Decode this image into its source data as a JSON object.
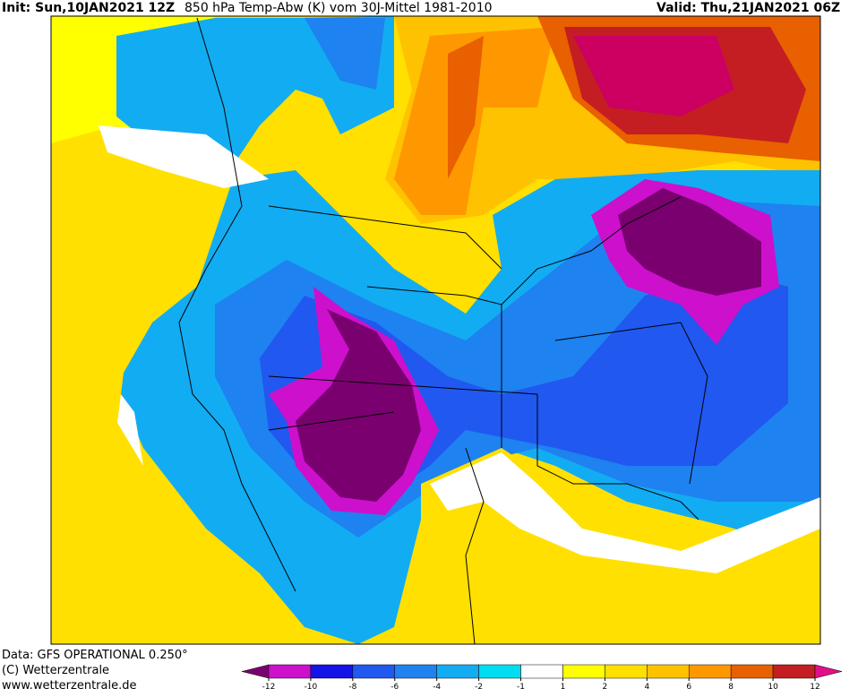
{
  "header": {
    "init": "Init: Sun,10JAN2021 12Z",
    "title": "850 hPa Temp-Abw (K) vom 30J-Mittel 1981-2010",
    "valid": "Valid: Thu,21JAN2021 06Z"
  },
  "footer": {
    "source": "Data: GFS OPERATIONAL 0.250°",
    "copyright": "(C) Wetterzentrale",
    "url": "www.wetterzentrale.de"
  },
  "colorbar": {
    "ticks": [
      -12,
      -10,
      -8,
      -6,
      -4,
      -2,
      -1,
      1,
      2,
      4,
      6,
      8,
      10,
      12
    ],
    "colors": [
      "#7a0070",
      "#cc10cc",
      "#1414e6",
      "#2058f0",
      "#1e82f0",
      "#12acf2",
      "#00dcf0",
      "#ffffff",
      "#ffff00",
      "#ffe000",
      "#ffc200",
      "#ff9800",
      "#e86000",
      "#c41e22",
      "#e0108a"
    ]
  }
}
